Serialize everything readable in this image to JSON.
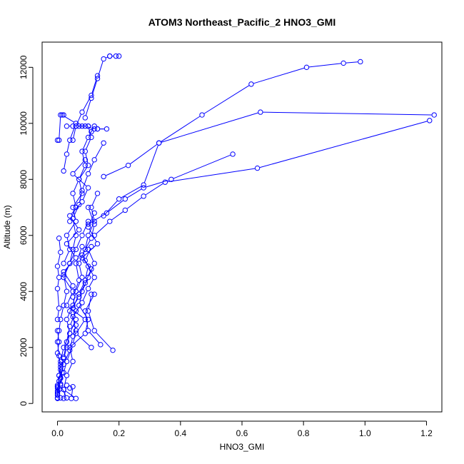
{
  "chart_data": {
    "type": "line",
    "title": "ATOM3 Northeast_Pacific_2 HNO3_GMI",
    "xlabel": "HNO3_GMI",
    "ylabel": "Altitude (m)",
    "xlim": [
      -0.05,
      1.25
    ],
    "ylim": [
      -300,
      12900
    ],
    "x_ticks": [
      0.0,
      0.2,
      0.4,
      0.6,
      0.8,
      1.0,
      1.2
    ],
    "x_tick_labels": [
      "0.0",
      "0.2",
      "0.4",
      "0.6",
      "0.8",
      "1.0",
      "1.2"
    ],
    "y_ticks": [
      0,
      2000,
      4000,
      6000,
      8000,
      10000,
      12000
    ],
    "y_tick_labels": [
      "0",
      "2000",
      "4000",
      "6000",
      "8000",
      "10000",
      "12000"
    ],
    "grid": false,
    "marker": "open-circle",
    "color": "#0000ff",
    "series": [
      {
        "x": [
          0.0,
          0.0,
          0.01,
          0.01,
          0.005,
          0.0,
          0.005,
          0.01,
          0.02,
          0.03,
          0.02,
          0.04,
          0.05,
          0.06,
          0.05,
          0.07,
          0.08,
          0.1,
          0.12,
          0.15
        ],
        "y": [
          200,
          600,
          900,
          1300,
          1700,
          2200,
          2600,
          3000,
          3500,
          4000,
          4600,
          5000,
          5500,
          6000,
          6600,
          7100,
          7600,
          8200,
          8700,
          9300
        ]
      },
      {
        "x": [
          0.0,
          0.005,
          0.01,
          0.02,
          0.03,
          0.04,
          0.06,
          0.05,
          0.07,
          0.09,
          0.1,
          0.08,
          0.11,
          0.12,
          0.1
        ],
        "y": [
          400,
          800,
          1200,
          1600,
          2000,
          2500,
          3000,
          3400,
          3900,
          4400,
          4900,
          5300,
          5900,
          6400,
          7000
        ]
      },
      {
        "x": [
          0.005,
          0.01,
          0.02,
          0.04,
          0.05,
          0.06,
          0.04,
          0.07,
          0.09,
          0.11,
          0.08,
          0.13,
          0.1,
          0.12
        ],
        "y": [
          500,
          900,
          1400,
          1900,
          2400,
          2800,
          3300,
          3800,
          4300,
          4800,
          5200,
          5700,
          6300,
          6800
        ]
      },
      {
        "x": [
          0.0,
          0.01,
          0.02,
          0.03,
          0.05,
          0.06,
          0.05,
          0.08,
          0.1,
          0.12,
          0.09,
          0.11
        ],
        "y": [
          300,
          700,
          1100,
          1500,
          2100,
          2600,
          3100,
          3600,
          4100,
          4500,
          5100,
          5600
        ]
      },
      {
        "x": [
          0.06,
          0.02,
          0.03,
          0.05,
          0.04,
          0.09,
          0.1,
          0.07,
          0.08,
          0.1,
          0.12,
          0.1
        ],
        "y": [
          180,
          500,
          1000,
          1500,
          2000,
          2500,
          3000,
          3500,
          4000,
          4500,
          5000,
          5500
        ]
      },
      {
        "x": [
          0.03,
          0.01,
          0.015,
          0.02,
          0.03,
          0.04,
          0.06,
          0.05,
          0.07,
          0.06,
          0.08
        ],
        "y": [
          200,
          650,
          1100,
          1650,
          2200,
          2750,
          3300,
          3800,
          4400,
          5000,
          5600
        ]
      },
      {
        "x": [
          0.005,
          0.01,
          0.02,
          0.04,
          0.03,
          0.05,
          0.06,
          0.08,
          0.07,
          0.09,
          0.1,
          0.12,
          0.11,
          0.13
        ],
        "y": [
          1000,
          1500,
          2000,
          2500,
          3000,
          3500,
          4000,
          4500,
          5000,
          5500,
          6000,
          6500,
          7000,
          7500
        ]
      },
      {
        "x": [
          0.05,
          0.02,
          0.06,
          0.03,
          0.07,
          0.04,
          0.08,
          0.1,
          0.05,
          0.09
        ],
        "y": [
          4200,
          4700,
          5200,
          5700,
          6200,
          6700,
          7200,
          7700,
          8200,
          8700
        ]
      },
      {
        "x": [
          0.02,
          0.04,
          0.03,
          0.06,
          0.05,
          0.08,
          0.07,
          0.1,
          0.09,
          0.11,
          0.1
        ],
        "y": [
          5000,
          5500,
          6000,
          6500,
          7000,
          7500,
          8000,
          8500,
          9000,
          9500,
          9900
        ]
      },
      {
        "x": [
          0.04,
          0.06,
          0.05,
          0.07,
          0.09,
          0.08,
          0.1,
          0.12,
          0.11
        ],
        "y": [
          6500,
          7000,
          7500,
          8000,
          8500,
          9000,
          9500,
          9900,
          9700
        ]
      },
      {
        "x": [
          0.01,
          0.0,
          0.005,
          0.01,
          0.0,
          0.005,
          0.0
        ],
        "y": [
          200,
          600,
          1000,
          1400,
          1800,
          2200,
          2600
        ]
      },
      {
        "x": [
          0.0,
          0.005,
          0.0,
          0.005,
          0.0,
          0.01,
          0.005
        ],
        "y": [
          3000,
          3400,
          4100,
          4500,
          4900,
          5400,
          5900
        ]
      },
      {
        "x": [
          0.11,
          0.06,
          0.09,
          0.03,
          0.05,
          0.02,
          0.04,
          0.06,
          0.08,
          0.1
        ],
        "y": [
          2000,
          2500,
          3000,
          3500,
          4000,
          4500,
          5000,
          5500,
          6000,
          6500
        ]
      },
      {
        "x": [
          0.14,
          0.1,
          0.09,
          0.12
        ],
        "y": [
          2100,
          2600,
          3300,
          3900
        ]
      },
      {
        "x": [
          0.18,
          0.12,
          0.1,
          0.11
        ],
        "y": [
          1900,
          2600,
          3300,
          3900
        ]
      },
      {
        "x": [
          0.0,
          0.0,
          0.0,
          0.0,
          0.0
        ],
        "y": [
          180,
          350,
          450,
          550,
          650
        ]
      },
      {
        "x": [
          0.045,
          0.05,
          0.04
        ],
        "y": [
          180,
          600,
          550
        ]
      },
      {
        "x": [
          0.02,
          0.03
        ],
        "y": [
          180,
          650
        ]
      },
      {
        "x": [
          0.13,
          0.11,
          0.08,
          0.06,
          0.05
        ],
        "y": [
          11700,
          11000,
          10400,
          9900,
          9400
        ]
      },
      {
        "x": [
          0.17,
          0.15,
          0.13,
          0.11,
          0.09
        ],
        "y": [
          12400,
          12300,
          11600,
          10900,
          10200
        ]
      },
      {
        "x": [
          0.2,
          0.19,
          0.17
        ],
        "y": [
          12400,
          12400,
          12400
        ]
      },
      {
        "x": [
          0.02,
          0.01,
          0.005,
          0.0
        ],
        "y": [
          10300,
          10300,
          9400,
          9400
        ]
      },
      {
        "x": [
          0.09,
          0.12,
          0.13,
          0.16,
          0.13
        ],
        "y": [
          9900,
          9800,
          9800,
          9800,
          9800
        ]
      },
      {
        "x": [
          0.07,
          0.08,
          0.06,
          0.1
        ],
        "y": [
          9900,
          9900,
          9900,
          9900
        ]
      },
      {
        "x": [
          0.03,
          0.05
        ],
        "y": [
          9900,
          9900
        ]
      },
      {
        "x": [
          0.015,
          0.06,
          0.04,
          0.03,
          0.02
        ],
        "y": [
          10300,
          10000,
          9400,
          8900,
          8300
        ]
      },
      {
        "x": [
          0.985,
          0.93,
          0.81,
          0.63,
          0.47,
          0.33,
          0.23,
          0.15
        ],
        "y": [
          12200,
          12150,
          12000,
          11400,
          10300,
          9300,
          8500,
          8100
        ]
      },
      {
        "x": [
          1.225,
          0.66,
          0.33,
          0.28,
          0.2,
          0.15
        ],
        "y": [
          10300,
          10400,
          9300,
          7800,
          7300,
          6700
        ]
      },
      {
        "x": [
          1.21,
          0.65,
          0.35,
          0.28,
          0.22,
          0.17,
          0.12
        ],
        "y": [
          10100,
          8400,
          7900,
          7400,
          6900,
          6500,
          6000
        ]
      },
      {
        "x": [
          0.57,
          0.37,
          0.28,
          0.22,
          0.16,
          0.1
        ],
        "y": [
          8900,
          8000,
          7700,
          7300,
          6800,
          6400
        ]
      }
    ]
  }
}
